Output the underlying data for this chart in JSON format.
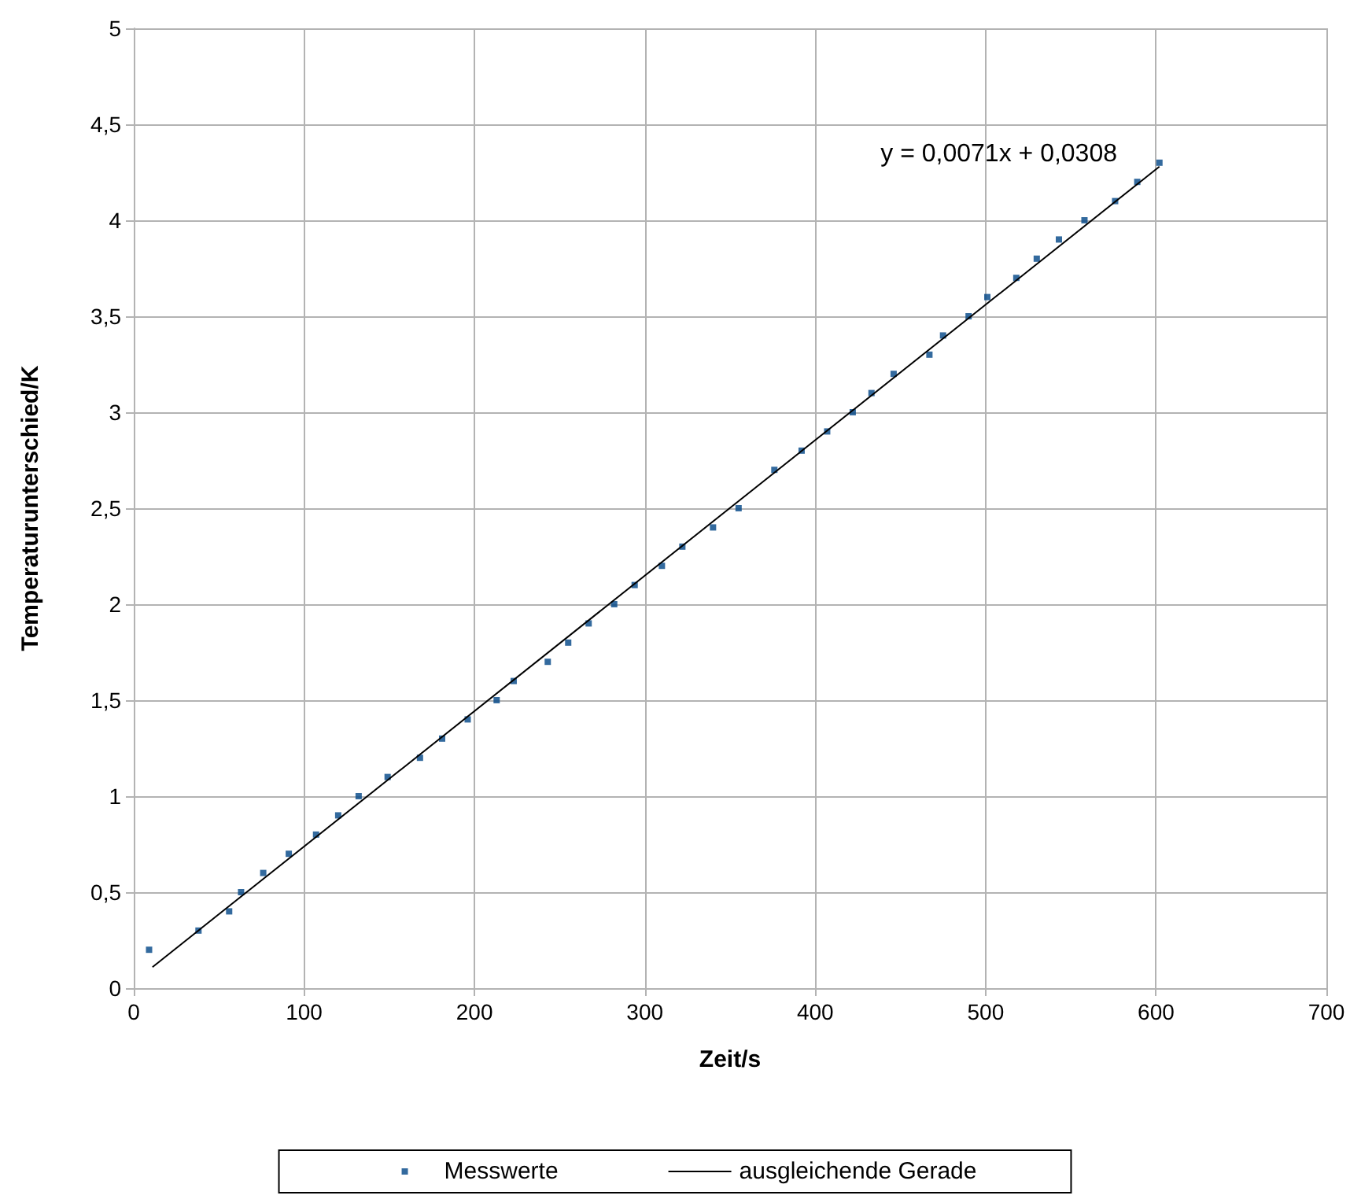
{
  "chart_data": {
    "type": "scatter",
    "xlabel": "Zeit/s",
    "ylabel": "Temperaturunterschied/K",
    "xlim": [
      0,
      700
    ],
    "xticks": [
      0,
      100,
      200,
      300,
      400,
      500,
      600,
      700
    ],
    "ylim": [
      0,
      5
    ],
    "yticks": [
      {
        "value": 0,
        "label": "0"
      },
      {
        "value": 0.5,
        "label": "0,5"
      },
      {
        "value": 1,
        "label": "1"
      },
      {
        "value": 1.5,
        "label": "1,5"
      },
      {
        "value": 2,
        "label": "2"
      },
      {
        "value": 2.5,
        "label": "2,5"
      },
      {
        "value": 3,
        "label": "3"
      },
      {
        "value": 3.5,
        "label": "3,5"
      },
      {
        "value": 4,
        "label": "4"
      },
      {
        "value": 4.5,
        "label": "4,5"
      },
      {
        "value": 5,
        "label": "5"
      }
    ],
    "grid": true,
    "legend": "bottom",
    "marker": "square",
    "annotations": [
      "y = 0,0071x + 0,0308"
    ],
    "series": [
      {
        "name": "Messwerte",
        "type": "scatter",
        "color": "#004586",
        "x": [
          9,
          38,
          56,
          63,
          76,
          91,
          107,
          120,
          132,
          149,
          168,
          181,
          196,
          213,
          223,
          243,
          255,
          267,
          282,
          294,
          310,
          322,
          340,
          355,
          376,
          392,
          407,
          422,
          433,
          446,
          467,
          475,
          490,
          501,
          518,
          530,
          543,
          558,
          576,
          589,
          602
        ],
        "values": [
          0.2,
          0.3,
          0.4,
          0.5,
          0.6,
          0.7,
          0.8,
          0.9,
          1.0,
          1.1,
          1.2,
          1.3,
          1.4,
          1.5,
          1.6,
          1.7,
          1.8,
          1.9,
          2.0,
          2.1,
          2.2,
          2.3,
          2.4,
          2.5,
          2.7,
          2.8,
          2.9,
          3.0,
          3.1,
          3.2,
          3.3,
          3.4,
          3.5,
          3.6,
          3.7,
          3.8,
          3.9,
          4.0,
          4.1,
          4.2,
          4.3
        ]
      },
      {
        "name": "ausgleichende Gerade",
        "type": "line",
        "color": "#000000",
        "marker": "none",
        "line_style": "solid",
        "x": [
          11,
          602
        ],
        "values": [
          0.11,
          4.28
        ]
      }
    ]
  }
}
